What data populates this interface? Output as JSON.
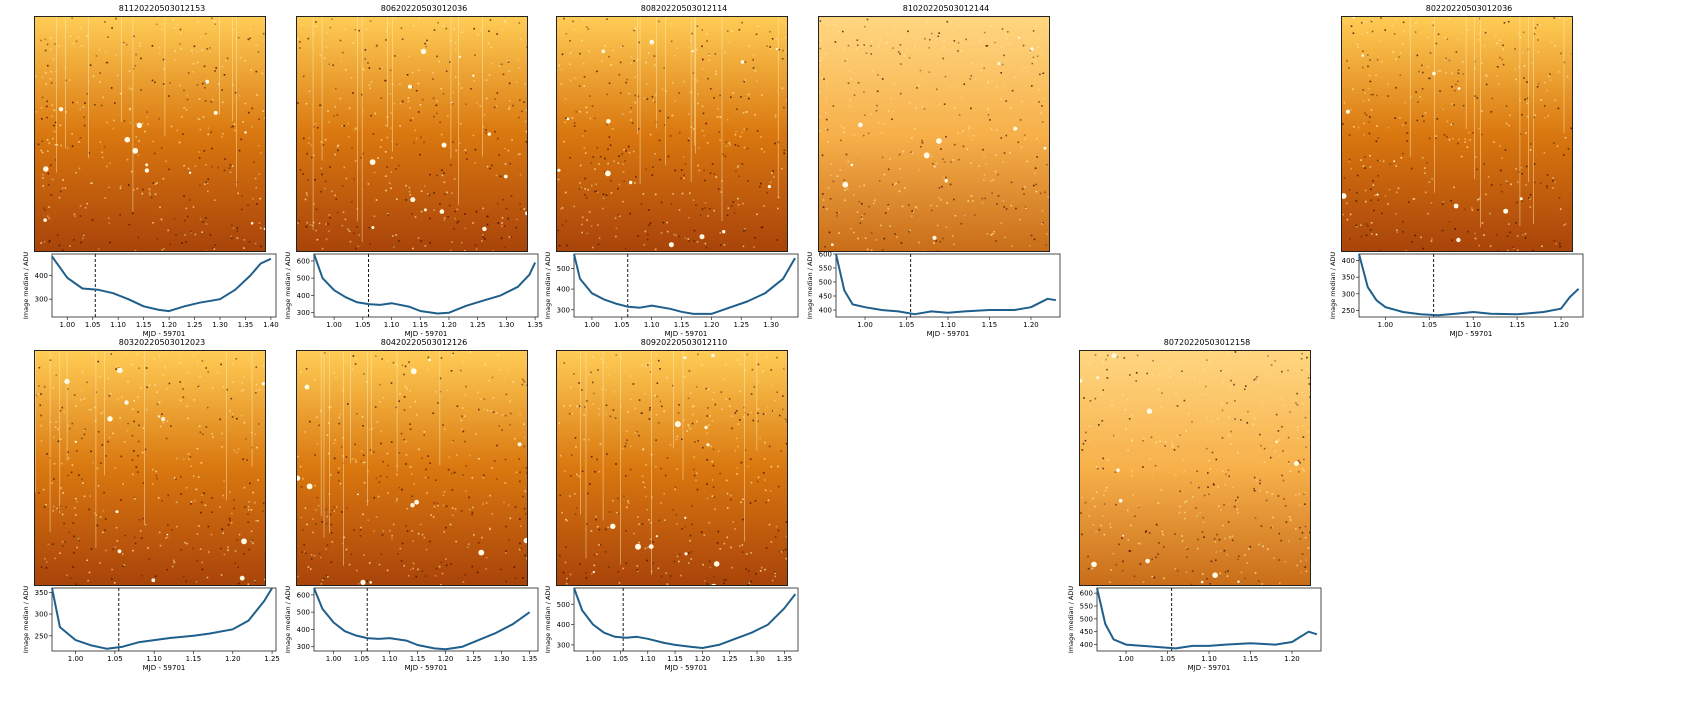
{
  "colors": {
    "line": "#1f5f8b",
    "vline": "#000000",
    "image_dark": "#3a0c00",
    "image_mid": "#d9770f",
    "image_bright": "#ffe8a0"
  },
  "chart_data": [
    {
      "type": "line",
      "title": "81120220503012153",
      "xlabel": "MJD - 59701",
      "ylabel": "Image median / ADU",
      "xlim": [
        0.97,
        1.41
      ],
      "ylim": [
        225,
        490
      ],
      "xticks": [
        "1.00",
        "1.05",
        "1.10",
        "1.15",
        "1.20",
        "1.25",
        "1.30",
        "1.35",
        "1.40"
      ],
      "yticks": [
        "300",
        "400"
      ],
      "vline_x": 1.055,
      "x": [
        0.97,
        1.0,
        1.03,
        1.06,
        1.09,
        1.12,
        1.15,
        1.18,
        1.2,
        1.23,
        1.26,
        1.3,
        1.33,
        1.36,
        1.38,
        1.4
      ],
      "y": [
        480,
        390,
        345,
        340,
        325,
        300,
        270,
        255,
        250,
        270,
        285,
        300,
        340,
        400,
        450,
        470
      ]
    },
    {
      "type": "line",
      "title": "80620220503012036",
      "xlabel": "MJD - 59701",
      "ylabel": "Image median / ADU",
      "xlim": [
        0.965,
        1.355
      ],
      "ylim": [
        275,
        640
      ],
      "xticks": [
        "1.00",
        "1.05",
        "1.10",
        "1.15",
        "1.20",
        "1.25",
        "1.30",
        "1.35"
      ],
      "yticks": [
        "300",
        "400",
        "500",
        "600"
      ],
      "vline_x": 1.06,
      "x": [
        0.965,
        0.98,
        1.0,
        1.02,
        1.04,
        1.06,
        1.08,
        1.1,
        1.13,
        1.15,
        1.18,
        1.2,
        1.23,
        1.26,
        1.29,
        1.32,
        1.34,
        1.35
      ],
      "y": [
        640,
        500,
        430,
        390,
        360,
        350,
        345,
        355,
        335,
        310,
        295,
        300,
        340,
        370,
        400,
        450,
        520,
        590
      ]
    },
    {
      "type": "line",
      "title": "80820220503012114",
      "xlabel": "MJD - 59701",
      "ylabel": "Image median / ADU",
      "xlim": [
        0.97,
        1.345
      ],
      "ylim": [
        265,
        570
      ],
      "xticks": [
        "1.00",
        "1.05",
        "1.10",
        "1.15",
        "1.20",
        "1.25",
        "1.30"
      ],
      "yticks": [
        "300",
        "400",
        "500"
      ],
      "vline_x": 1.06,
      "x": [
        0.97,
        0.98,
        1.0,
        1.02,
        1.04,
        1.06,
        1.08,
        1.1,
        1.13,
        1.15,
        1.17,
        1.2,
        1.23,
        1.26,
        1.29,
        1.32,
        1.34
      ],
      "y": [
        570,
        450,
        380,
        350,
        330,
        315,
        310,
        320,
        305,
        290,
        280,
        280,
        310,
        340,
        380,
        450,
        550
      ]
    },
    {
      "type": "line",
      "title": "81020220503012144",
      "xlabel": "MJD - 59701",
      "ylabel": "Image median / ADU",
      "xlim": [
        0.965,
        1.235
      ],
      "ylim": [
        375,
        600
      ],
      "xticks": [
        "1.00",
        "1.05",
        "1.10",
        "1.15",
        "1.20"
      ],
      "yticks": [
        "400",
        "450",
        "500",
        "550",
        "600"
      ],
      "vline_x": 1.055,
      "x": [
        0.965,
        0.975,
        0.985,
        1.0,
        1.02,
        1.04,
        1.06,
        1.08,
        1.1,
        1.12,
        1.15,
        1.18,
        1.2,
        1.22,
        1.23
      ],
      "y": [
        600,
        470,
        420,
        410,
        400,
        395,
        385,
        395,
        390,
        395,
        400,
        400,
        410,
        440,
        435
      ]
    },
    {
      "type": "line",
      "title": "80220220503012036",
      "xlabel": "MJD - 59701",
      "ylabel": "Image median / ADU",
      "xlim": [
        0.97,
        1.225
      ],
      "ylim": [
        230,
        420
      ],
      "xticks": [
        "1.00",
        "1.05",
        "1.10",
        "1.15",
        "1.20"
      ],
      "yticks": [
        "250",
        "300",
        "350",
        "400"
      ],
      "vline_x": 1.055,
      "x": [
        0.97,
        0.98,
        0.99,
        1.0,
        1.02,
        1.04,
        1.06,
        1.08,
        1.1,
        1.12,
        1.15,
        1.18,
        1.2,
        1.21,
        1.22
      ],
      "y": [
        420,
        320,
        280,
        260,
        245,
        238,
        235,
        240,
        245,
        240,
        238,
        245,
        255,
        290,
        315
      ]
    },
    {
      "type": "line",
      "title": "80320220503012023",
      "xlabel": "MJD - 59701",
      "ylabel": "Image median / ADU",
      "xlim": [
        0.97,
        1.255
      ],
      "ylim": [
        215,
        360
      ],
      "xticks": [
        "1.00",
        "1.05",
        "1.10",
        "1.15",
        "1.20",
        "1.25"
      ],
      "yticks": [
        "250",
        "300",
        "350"
      ],
      "vline_x": 1.055,
      "x": [
        0.97,
        0.98,
        1.0,
        1.02,
        1.04,
        1.06,
        1.08,
        1.1,
        1.12,
        1.15,
        1.17,
        1.2,
        1.22,
        1.24,
        1.25
      ],
      "y": [
        360,
        270,
        240,
        228,
        220,
        225,
        235,
        240,
        245,
        250,
        255,
        265,
        285,
        330,
        360
      ]
    },
    {
      "type": "line",
      "title": "80420220503012126",
      "xlabel": "MJD - 59701",
      "ylabel": "Image median / ADU",
      "xlim": [
        0.965,
        1.365
      ],
      "ylim": [
        275,
        640
      ],
      "xticks": [
        "1.00",
        "1.05",
        "1.10",
        "1.15",
        "1.20",
        "1.25",
        "1.30",
        "1.35"
      ],
      "yticks": [
        "300",
        "400",
        "500",
        "600"
      ],
      "vline_x": 1.06,
      "x": [
        0.965,
        0.98,
        1.0,
        1.02,
        1.04,
        1.06,
        1.08,
        1.1,
        1.13,
        1.15,
        1.18,
        1.2,
        1.23,
        1.26,
        1.29,
        1.32,
        1.35
      ],
      "y": [
        640,
        520,
        440,
        390,
        365,
        350,
        345,
        350,
        335,
        310,
        290,
        285,
        300,
        340,
        380,
        430,
        500
      ]
    },
    {
      "type": "line",
      "title": "80920220503012110",
      "xlabel": "MJD - 59701",
      "ylabel": "Image median / ADU",
      "xlim": [
        0.965,
        1.375
      ],
      "ylim": [
        270,
        580
      ],
      "xticks": [
        "1.00",
        "1.05",
        "1.10",
        "1.15",
        "1.20",
        "1.25",
        "1.30",
        "1.35"
      ],
      "yticks": [
        "300",
        "400",
        "500"
      ],
      "vline_x": 1.055,
      "x": [
        0.965,
        0.98,
        1.0,
        1.02,
        1.04,
        1.06,
        1.08,
        1.1,
        1.13,
        1.15,
        1.18,
        1.2,
        1.23,
        1.26,
        1.29,
        1.32,
        1.35,
        1.37
      ],
      "y": [
        580,
        470,
        400,
        360,
        340,
        335,
        340,
        330,
        310,
        300,
        290,
        285,
        300,
        330,
        360,
        400,
        480,
        550
      ]
    },
    {
      "type": "line",
      "title": "80720220503012158",
      "xlabel": "MJD - 59701",
      "ylabel": "Image median / ADU",
      "xlim": [
        0.965,
        1.235
      ],
      "ylim": [
        375,
        620
      ],
      "xticks": [
        "1.00",
        "1.05",
        "1.10",
        "1.15",
        "1.20"
      ],
      "yticks": [
        "400",
        "450",
        "500",
        "550",
        "600"
      ],
      "vline_x": 1.055,
      "x": [
        0.965,
        0.975,
        0.985,
        1.0,
        1.02,
        1.04,
        1.06,
        1.08,
        1.1,
        1.12,
        1.15,
        1.18,
        1.2,
        1.22,
        1.23
      ],
      "y": [
        620,
        480,
        420,
        400,
        395,
        390,
        385,
        395,
        395,
        400,
        405,
        400,
        410,
        450,
        440
      ]
    }
  ]
}
